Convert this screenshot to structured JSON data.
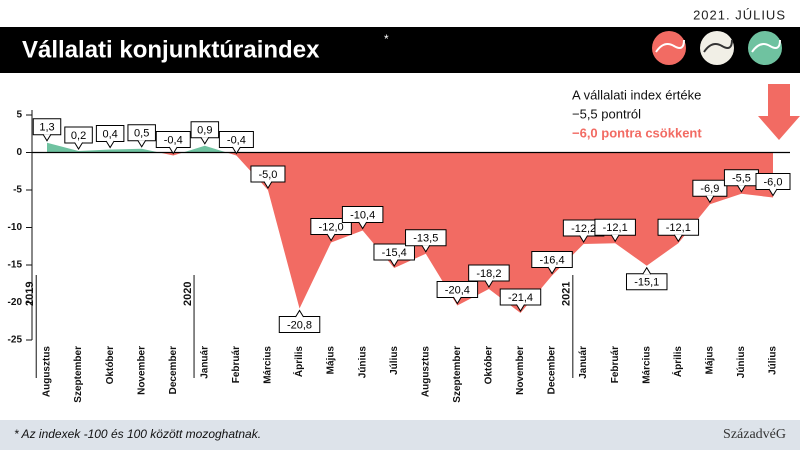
{
  "header": {
    "date": "2021. JÚLIUS",
    "title": "Vállalati konjunktúraindex",
    "title_mark": "*"
  },
  "chart_data": {
    "type": "area",
    "categories": [
      "Augusztus",
      "Szeptember",
      "Október",
      "November",
      "December",
      "Január",
      "Február",
      "Március",
      "Április",
      "Május",
      "Június",
      "Július",
      "Augusztus",
      "Szeptember",
      "Október",
      "November",
      "December",
      "Január",
      "Február",
      "Március",
      "Április",
      "Május",
      "Június",
      "Július"
    ],
    "years": [
      "2019",
      "2020",
      "2021"
    ],
    "values": [
      1.3,
      0.2,
      0.4,
      0.5,
      -0.4,
      0.9,
      -0.4,
      -5.0,
      -20.8,
      -12.0,
      -10.4,
      -15.4,
      -13.5,
      -20.4,
      -18.2,
      -21.4,
      -16.4,
      -12.2,
      -12.1,
      -15.1,
      -12.1,
      -6.9,
      -5.5,
      -6.0
    ],
    "value_labels": [
      "1,3",
      "0,2",
      "0,4",
      "0,5",
      "-0,4",
      "0,9",
      "-0,4",
      "-5,0",
      "-20,8",
      "-12,0",
      "-10,4",
      "-15,4",
      "-13,5",
      "-20,4",
      "-18,2",
      "-21,4",
      "-16,4",
      "-12,2",
      "-12,1",
      "-15,1",
      "-12,1",
      "-6,9",
      "-5,5",
      "-6,0"
    ],
    "positive_color": "#6fc2a0",
    "negative_color": "#f26b63",
    "ylim": [
      -25,
      5
    ],
    "yticks": [
      5,
      0,
      -5,
      -10,
      -15,
      -20,
      -25
    ],
    "annotation": [
      "A vállalati index értéke",
      "−5,5 pontról",
      "−6,0 pontra csökkent"
    ]
  },
  "footer": {
    "note": "* Az indexek -100 és 100 között mozoghatnak.",
    "logo": "SzázadvéG"
  }
}
